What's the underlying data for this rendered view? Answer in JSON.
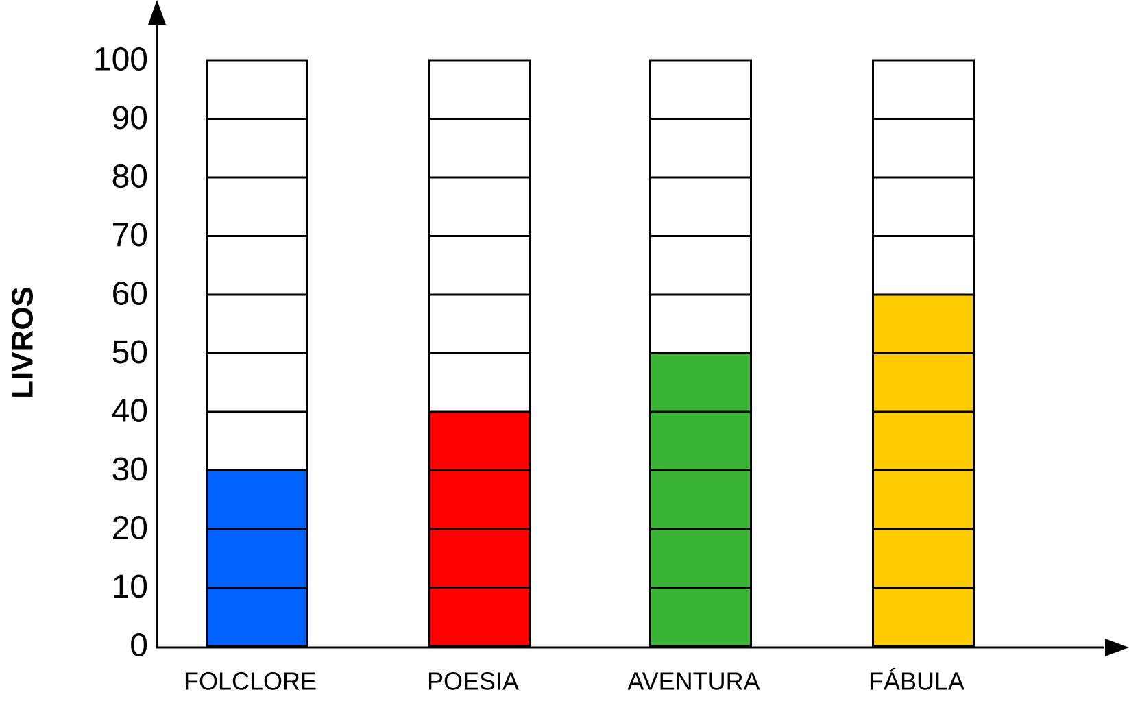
{
  "chart_data": {
    "type": "bar",
    "y_label": "LIVROS",
    "categories": [
      "FOLCLORE",
      "POESIA",
      "AVENTURA",
      "FÁBULA"
    ],
    "values": [
      30,
      40,
      50,
      60
    ],
    "colors": [
      "#0062ff",
      "#ff0000",
      "#3ab536",
      "#ffcc00"
    ],
    "ylim": [
      0,
      100
    ],
    "yticks": [
      0,
      10,
      20,
      30,
      40,
      50,
      60,
      70,
      80,
      90,
      100
    ]
  }
}
